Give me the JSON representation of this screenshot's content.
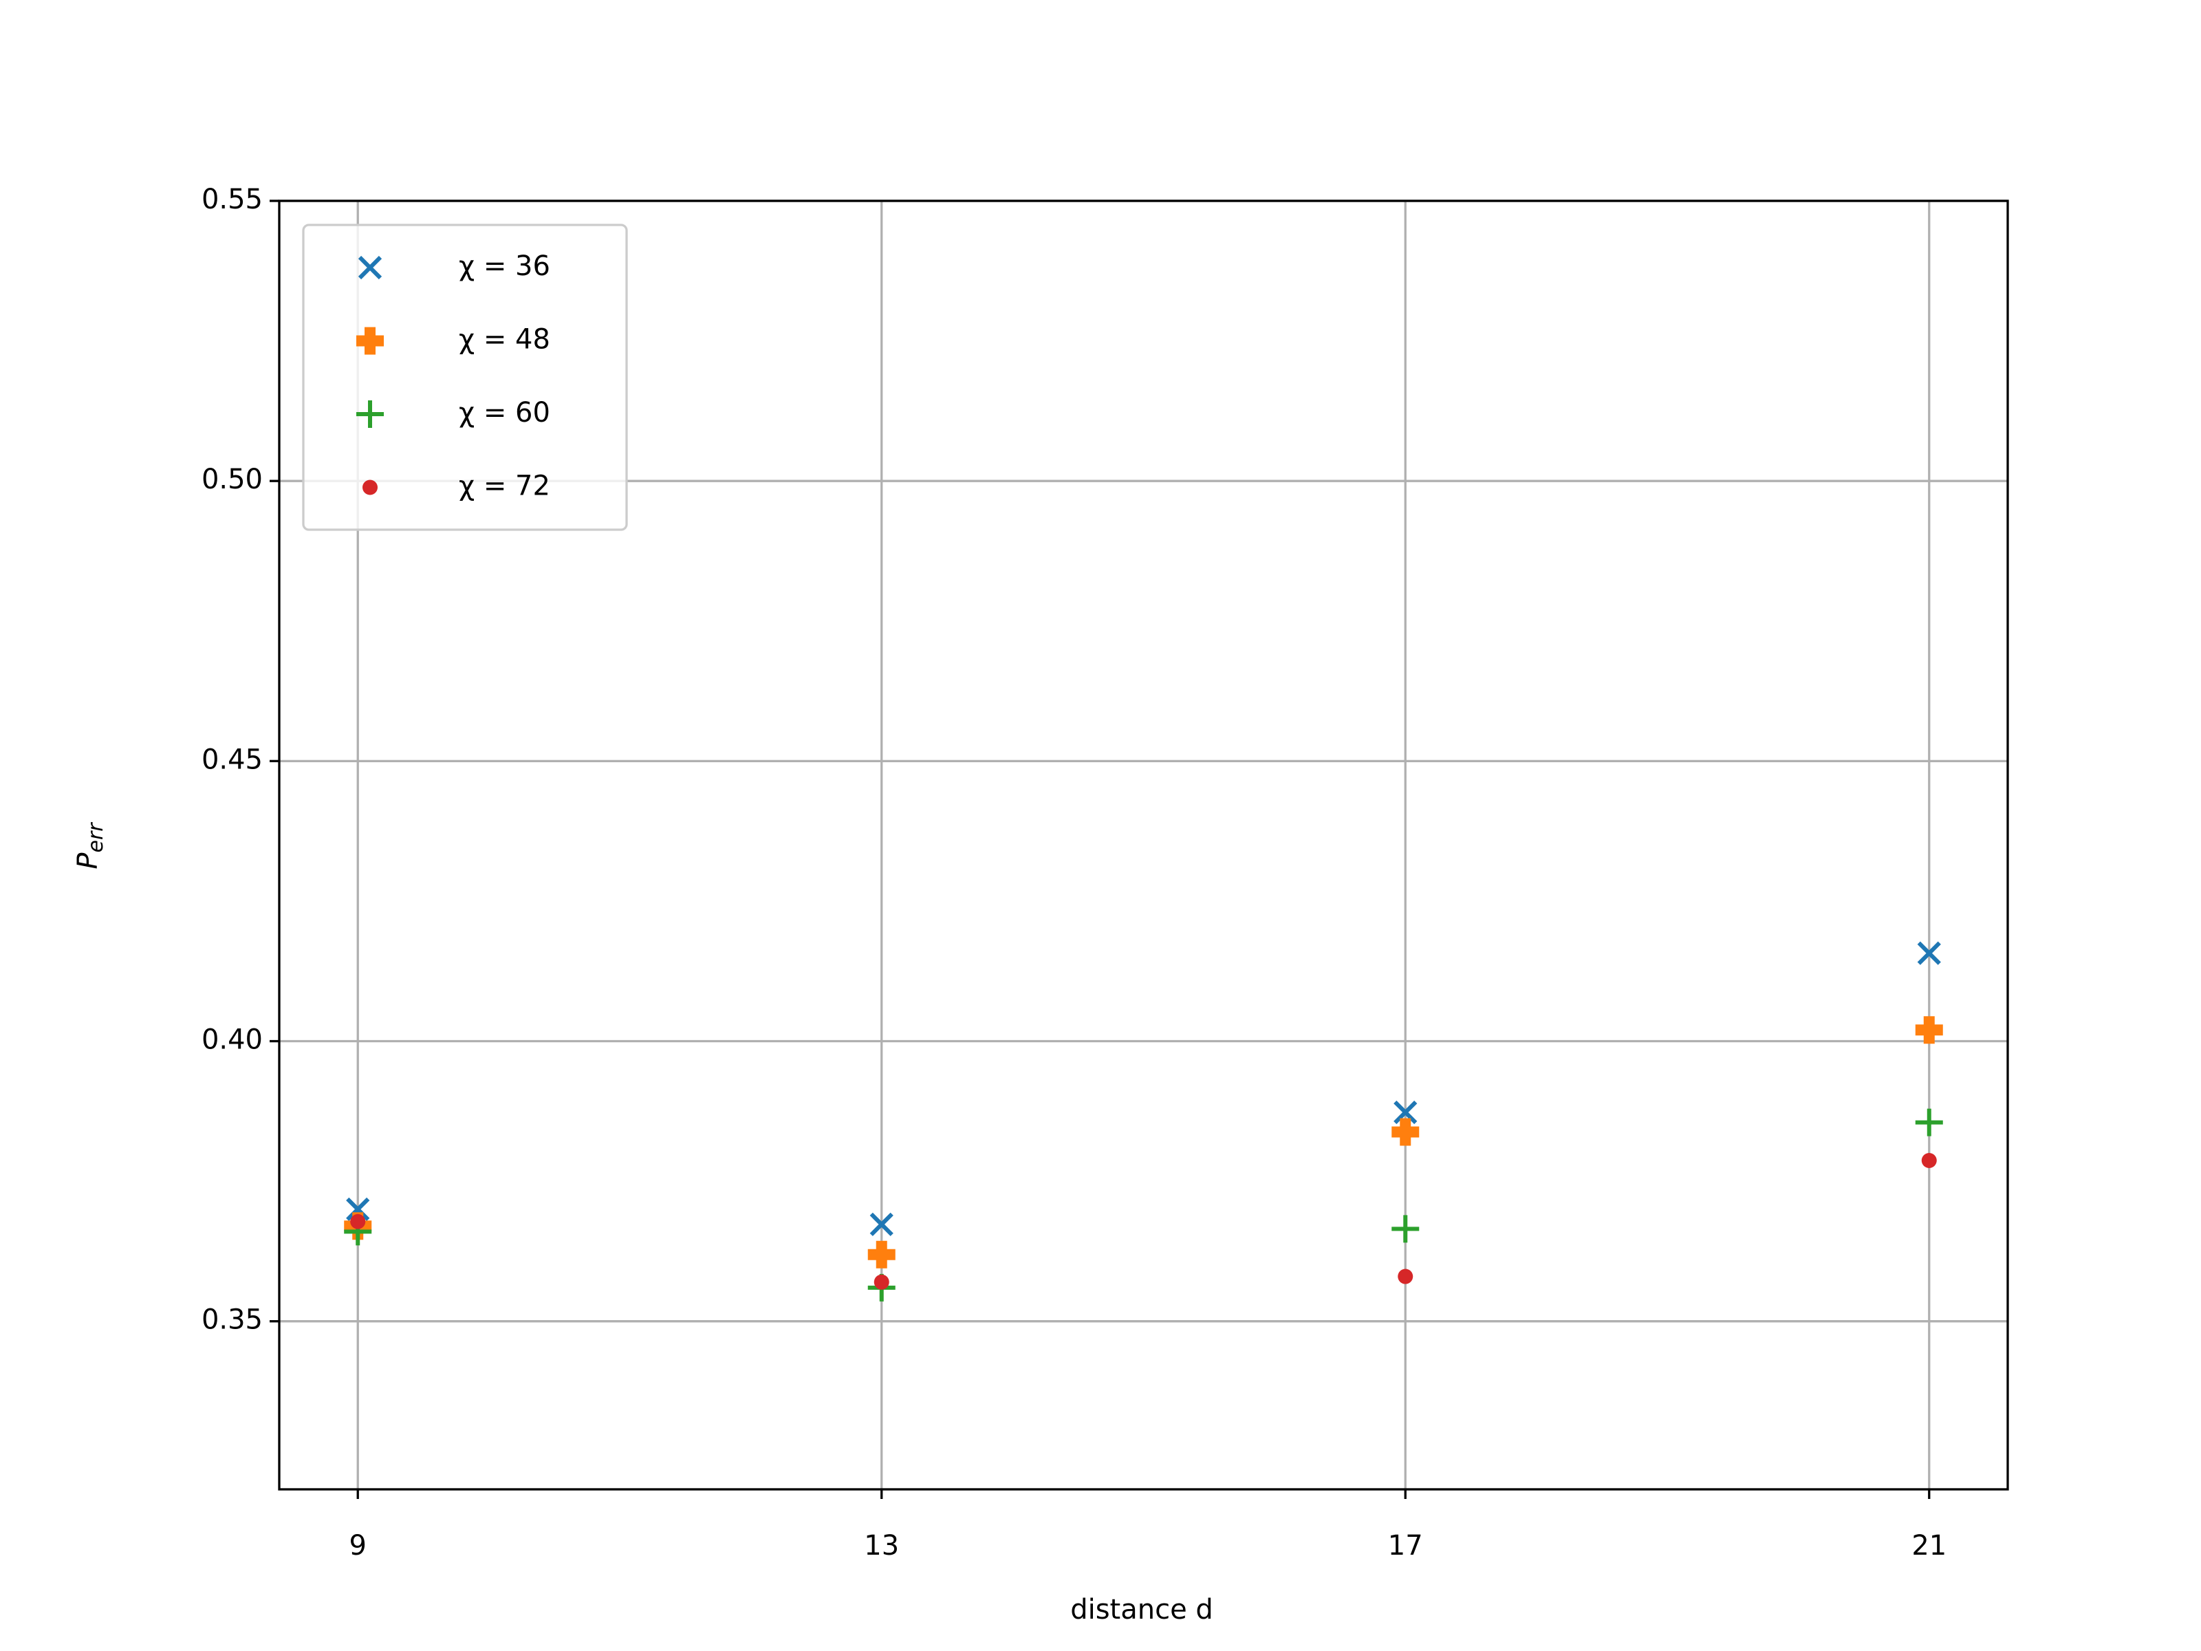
{
  "chart_data": {
    "type": "scatter",
    "xlabel": "distance d",
    "ylabel": "P",
    "ylabel_subscript": "err",
    "x": [
      9,
      13,
      17,
      21
    ],
    "series": [
      {
        "name": "χ = 36",
        "color": "#1f77b4",
        "marker": "x",
        "values": [
          0.37,
          0.3673,
          0.3873,
          0.4157
        ]
      },
      {
        "name": "χ = 48",
        "color": "#ff7f0e",
        "marker": "P",
        "values": [
          0.367,
          0.3619,
          0.3838,
          0.402
        ]
      },
      {
        "name": "χ = 60",
        "color": "#2ca02c",
        "marker": "+",
        "values": [
          0.366,
          0.356,
          0.3665,
          0.3855
        ]
      },
      {
        "name": "χ = 72",
        "color": "#d62728",
        "marker": ".",
        "values": [
          0.3678,
          0.357,
          0.358,
          0.3787
        ]
      }
    ],
    "xlim": [
      8.4,
      21.6
    ],
    "xticks": [
      9,
      13,
      17,
      21
    ],
    "ylim": [
      0.32,
      0.55
    ],
    "yticks": [
      0.35,
      {
        "value": 0.4,
        "label": "0.40"
      },
      0.45,
      {
        "value": 0.5,
        "label": "0.50"
      },
      0.55
    ],
    "grid": true,
    "legend": "upper left"
  }
}
